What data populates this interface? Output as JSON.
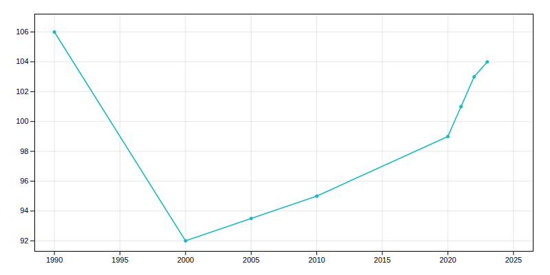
{
  "chart_data": {
    "type": "line",
    "x": [
      1990,
      2000,
      2005,
      2010,
      2020,
      2021,
      2022,
      2023
    ],
    "values": [
      106,
      92,
      93.5,
      95,
      99,
      101,
      103,
      104
    ],
    "color": "#1ab8c0",
    "marker": "circle",
    "xlim": [
      1988.5,
      2026.5
    ],
    "ylim": [
      91.3,
      107.2
    ],
    "xticks": [
      1990,
      1995,
      2000,
      2005,
      2010,
      2015,
      2020,
      2025
    ],
    "yticks": [
      92,
      94,
      96,
      98,
      100,
      102,
      104,
      106
    ],
    "grid": true
  }
}
